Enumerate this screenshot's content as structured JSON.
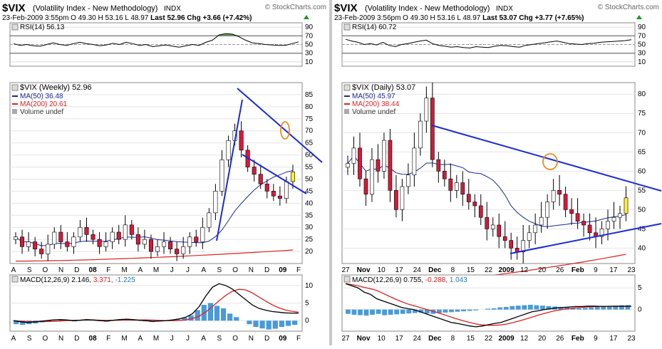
{
  "charts": [
    {
      "id": "weekly",
      "symbol": "$VIX",
      "name": "(Volatility Index - New Methodology)",
      "exchange": "INDX",
      "watermark": "© StockCharts.com",
      "date": "23-Feb-2009 3:55pm",
      "quote": {
        "open_label": "O",
        "open": "49.30",
        "high_label": "H",
        "high": "53.16",
        "low_label": "L",
        "low": "48.97",
        "last_label": "Last",
        "last": "52.96",
        "chg_label": "Chg",
        "chg": "+3.66 (+7.42%)"
      },
      "rsi": {
        "label": "RSI(14)",
        "value": "56.13",
        "ticks": [
          "90",
          "70",
          "50",
          "30",
          "10"
        ]
      },
      "legend": {
        "main": "$VIX (Weekly)",
        "main_value": "52.96",
        "ma1": "MA(50)",
        "ma1_value": "36.48",
        "ma2": "MA(200)",
        "ma2_value": "20.61",
        "volume": "Volume undef"
      },
      "price_ticks": [
        "85",
        "80",
        "75",
        "70",
        "65",
        "60",
        "55",
        "50",
        "45",
        "40",
        "35",
        "30",
        "25",
        "20"
      ],
      "macd": {
        "label": "MACD(12,26,9)",
        "v1": "2.146",
        "v2": "3.371",
        "v3": "-1.225",
        "ticks": [
          "10",
          "5",
          "0"
        ]
      },
      "x_labels": [
        "A",
        "S",
        "O",
        "N",
        "D",
        "08",
        "F",
        "M",
        "A",
        "M",
        "J",
        "J",
        "A",
        "S",
        "O",
        "N",
        "D",
        "09",
        "F"
      ],
      "x_bold": [
        "08",
        "09"
      ]
    },
    {
      "id": "daily",
      "symbol": "$VIX",
      "name": "(Volatility Index - New Methodology)",
      "exchange": "INDX",
      "watermark": "© StockCharts.com",
      "date": "23-Feb-2009 3:56pm",
      "quote": {
        "open_label": "O",
        "open": "49.30",
        "high_label": "H",
        "high": "53.16",
        "low_label": "L",
        "low": "48.97",
        "last_label": "Last",
        "last": "53.07",
        "chg_label": "Chg",
        "chg": "+3.77 (+7.65%)"
      },
      "rsi": {
        "label": "RSI(14)",
        "value": "60.72",
        "ticks": [
          "90",
          "70",
          "50",
          "30",
          "10"
        ]
      },
      "legend": {
        "main": "$VIX (Daily)",
        "main_value": "53.07",
        "ma1": "MA(50)",
        "ma1_value": "45.97",
        "ma2": "MA(200)",
        "ma2_value": "38.44",
        "volume": "Volume undef"
      },
      "price_ticks": [
        "80",
        "75",
        "70",
        "65",
        "60",
        "55",
        "50",
        "45",
        "40"
      ],
      "macd": {
        "label": "MACD(12,26,9)",
        "v1": "0.755",
        "v2": "-0.288",
        "v3": "1.043",
        "ticks": [
          "5",
          "0"
        ]
      },
      "x_labels": [
        "27",
        "Nov",
        "10",
        "17",
        "24",
        "Dec",
        "8",
        "15",
        "22",
        "2009",
        "12",
        "20",
        "26",
        "Feb",
        "9",
        "17",
        "23"
      ],
      "x_bold": [
        "Nov",
        "Dec",
        "2009",
        "Feb"
      ]
    }
  ],
  "chart_data": [
    {
      "type": "candlestick",
      "title": "$VIX (Volatility Index - New Methodology) INDX — Weekly",
      "ylim": [
        15,
        90
      ],
      "series": [
        {
          "name": "MA(50)",
          "last": 36.48
        },
        {
          "name": "MA(200)",
          "last": 20.61
        }
      ],
      "close": [
        26,
        22,
        24,
        21,
        19,
        23,
        28,
        24,
        22,
        26,
        30,
        27,
        25,
        22,
        24,
        28,
        25,
        31,
        27,
        23,
        25,
        20,
        22,
        24,
        21,
        19,
        22,
        26,
        24,
        30,
        36,
        45,
        58,
        66,
        70,
        62,
        55,
        52,
        48,
        45,
        43,
        42,
        49,
        52.96
      ],
      "annotations": [
        "descending channel",
        "orange circle near 60",
        "yellow last candle"
      ]
    },
    {
      "type": "candlestick",
      "title": "$VIX (Volatility Index - New Methodology) INDX — Daily",
      "ylim": [
        36,
        83
      ],
      "series": [
        {
          "name": "MA(50)",
          "last": 45.97
        },
        {
          "name": "MA(200)",
          "last": 38.44
        }
      ],
      "close": [
        62,
        66,
        58,
        54,
        63,
        60,
        68,
        55,
        50,
        56,
        59,
        66,
        73,
        79,
        63,
        60,
        58,
        55,
        57,
        54,
        52,
        51,
        48,
        45,
        46,
        43,
        42,
        40,
        39,
        42,
        44,
        46,
        48,
        52,
        55,
        54,
        50,
        49,
        47,
        46,
        44,
        43,
        45,
        47,
        48,
        49,
        53.07
      ],
      "annotations": [
        "descending trendline",
        "ascending trendline",
        "orange circle near 57",
        "yellow last candle"
      ]
    }
  ]
}
